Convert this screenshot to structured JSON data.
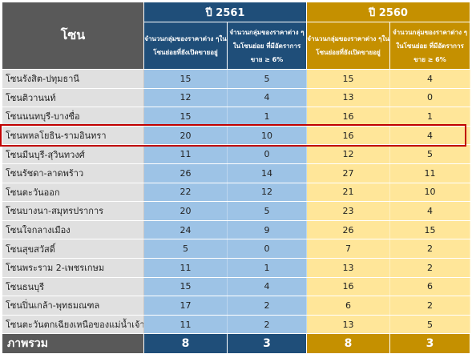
{
  "header": {
    "zone_label": "โซน",
    "years": [
      "ปี 2561",
      "ปี 2560"
    ],
    "col_open": "จำนวนกลุ่มของราคาต่าง ๆในโซนย่อยที่ยังเปิดขายอยู่",
    "col_sold": "จำนวนกลุ่มของราคาต่าง ๆในโซนย่อย ที่มีอัตราการขาย ≥ 6%"
  },
  "rows": [
    {
      "zone": "โซนรังสิต-ปทุมธานี",
      "v2561_open": "15",
      "v2561_sold": "5",
      "v2560_open": "15",
      "v2560_sold": "4"
    },
    {
      "zone": "โซนติวานนท์",
      "v2561_open": "12",
      "v2561_sold": "4",
      "v2560_open": "13",
      "v2560_sold": "0"
    },
    {
      "zone": "โซนนนทบุรี-บางซื่อ",
      "v2561_open": "15",
      "v2561_sold": "1",
      "v2560_open": "16",
      "v2560_sold": "1"
    },
    {
      "zone": "โซนพหลโยธิน-รามอินทรา",
      "v2561_open": "20",
      "v2561_sold": "10",
      "v2560_open": "16",
      "v2560_sold": "4"
    },
    {
      "zone": "โซนมีนบุรี-สุวินทวงศ์",
      "v2561_open": "11",
      "v2561_sold": "0",
      "v2560_open": "12",
      "v2560_sold": "5"
    },
    {
      "zone": "โซนรัชดา-ลาดพร้าว",
      "v2561_open": "26",
      "v2561_sold": "14",
      "v2560_open": "27",
      "v2560_sold": "11"
    },
    {
      "zone": "โซนตะวันออก",
      "v2561_open": "22",
      "v2561_sold": "12",
      "v2560_open": "21",
      "v2560_sold": "10"
    },
    {
      "zone": "โซนบางนา-สมุทรปราการ",
      "v2561_open": "20",
      "v2561_sold": "5",
      "v2560_open": "23",
      "v2560_sold": "4"
    },
    {
      "zone": "โซนใจกลางเมือง",
      "v2561_open": "24",
      "v2561_sold": "9",
      "v2560_open": "26",
      "v2560_sold": "15"
    },
    {
      "zone": "โซนสุขสวัสดิ์",
      "v2561_open": "5",
      "v2561_sold": "0",
      "v2560_open": "7",
      "v2560_sold": "2"
    },
    {
      "zone": "โซนพระราม 2-เพชรเกษม",
      "v2561_open": "11",
      "v2561_sold": "1",
      "v2560_open": "13",
      "v2560_sold": "2"
    },
    {
      "zone": "โซนธนบุรี",
      "v2561_open": "15",
      "v2561_sold": "4",
      "v2560_open": "16",
      "v2560_sold": "6"
    },
    {
      "zone": "โซนปิ่นเกล้า-พุทธมณฑล",
      "v2561_open": "17",
      "v2561_sold": "2",
      "v2560_open": "6",
      "v2560_sold": "2"
    },
    {
      "zone": "โซนตะวันตกเฉียงเหนือของแม่น้ำเจ้าพระยา",
      "v2561_open": "11",
      "v2561_sold": "2",
      "v2560_open": "13",
      "v2560_sold": "5"
    }
  ],
  "footer": {
    "label": "ภาพรวม",
    "v2561_open": "8",
    "v2561_sold": "3",
    "v2560_open": "8",
    "v2560_sold": "3"
  },
  "colors": {
    "year_2561": "#1f4e79",
    "year_2560": "#c59000",
    "cell_2561": "#9dc3e6",
    "cell_2560": "#ffe699",
    "highlight": "#c00000"
  }
}
